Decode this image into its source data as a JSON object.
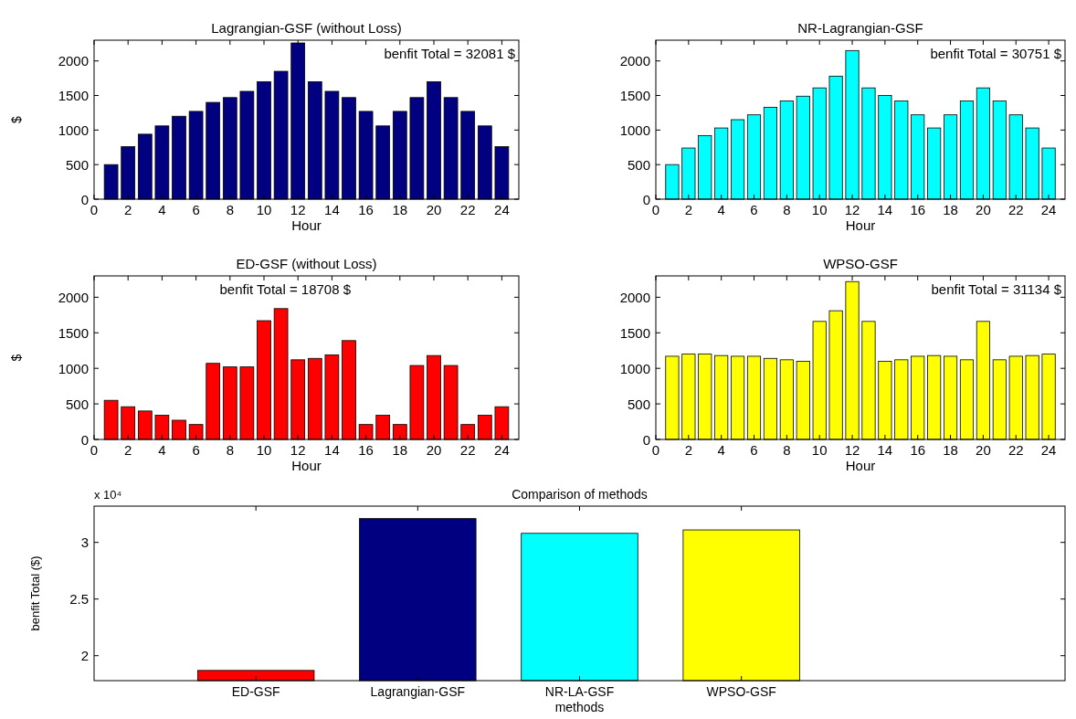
{
  "chart_data": [
    {
      "type": "bar",
      "title": "Lagrangian-GSF (without Loss)",
      "xlabel": "Hour",
      "ylabel": "$",
      "x": [
        1,
        2,
        3,
        4,
        5,
        6,
        7,
        8,
        9,
        10,
        11,
        12,
        13,
        14,
        15,
        16,
        17,
        18,
        19,
        20,
        21,
        22,
        23,
        24
      ],
      "values": [
        500,
        760,
        940,
        1060,
        1200,
        1270,
        1400,
        1470,
        1560,
        1700,
        1850,
        2260,
        1700,
        1560,
        1470,
        1270,
        1060,
        1270,
        1470,
        1700,
        1470,
        1270,
        1060,
        760
      ],
      "color": "#000080",
      "xlim": [
        0,
        25
      ],
      "xticks": [
        0,
        2,
        4,
        6,
        8,
        10,
        12,
        14,
        16,
        18,
        20,
        22,
        24
      ],
      "ylim": [
        0,
        2300
      ],
      "yticks": [
        0,
        500,
        1000,
        1500,
        2000
      ],
      "grid": false,
      "annotations": [
        "benfit Total = 32081 $"
      ]
    },
    {
      "type": "bar",
      "title": "NR-Lagrangian-GSF",
      "xlabel": "Hour",
      "x": [
        1,
        2,
        3,
        4,
        5,
        6,
        7,
        8,
        9,
        10,
        11,
        12,
        13,
        14,
        15,
        16,
        17,
        18,
        19,
        20,
        21,
        22,
        23,
        24
      ],
      "values": [
        500,
        740,
        920,
        1030,
        1150,
        1220,
        1330,
        1420,
        1490,
        1610,
        1780,
        2150,
        1610,
        1500,
        1420,
        1220,
        1030,
        1220,
        1420,
        1610,
        1420,
        1220,
        1030,
        740
      ],
      "color": "#00ffff",
      "xlim": [
        0,
        25
      ],
      "xticks": [
        0,
        2,
        4,
        6,
        8,
        10,
        12,
        14,
        16,
        18,
        20,
        22,
        24
      ],
      "ylim": [
        0,
        2300
      ],
      "yticks": [
        0,
        500,
        1000,
        1500,
        2000
      ],
      "grid": false,
      "annotations": [
        "benfit Total = 30751 $"
      ]
    },
    {
      "type": "bar",
      "title": "ED-GSF (without Loss)",
      "xlabel": "Hour",
      "ylabel": "$",
      "x": [
        1,
        2,
        3,
        4,
        5,
        6,
        7,
        8,
        9,
        10,
        11,
        12,
        13,
        14,
        15,
        16,
        17,
        18,
        19,
        20,
        21,
        22,
        23,
        24
      ],
      "values": [
        550,
        460,
        400,
        340,
        270,
        210,
        1070,
        1020,
        1020,
        1670,
        1840,
        1120,
        1140,
        1190,
        1390,
        210,
        340,
        210,
        1040,
        1180,
        1040,
        210,
        340,
        460
      ],
      "color": "#ff0000",
      "xlim": [
        0,
        25
      ],
      "xticks": [
        0,
        2,
        4,
        6,
        8,
        10,
        12,
        14,
        16,
        18,
        20,
        22,
        24
      ],
      "ylim": [
        0,
        2300
      ],
      "yticks": [
        0,
        500,
        1000,
        1500,
        2000
      ],
      "grid": false,
      "annotations": [
        "benfit Total = 18708 $"
      ]
    },
    {
      "type": "bar",
      "title": "WPSO-GSF",
      "xlabel": "Hour",
      "x": [
        1,
        2,
        3,
        4,
        5,
        6,
        7,
        8,
        9,
        10,
        11,
        12,
        13,
        14,
        15,
        16,
        17,
        18,
        19,
        20,
        21,
        22,
        23,
        24
      ],
      "values": [
        1170,
        1200,
        1200,
        1180,
        1170,
        1170,
        1140,
        1120,
        1100,
        1660,
        1810,
        2220,
        1660,
        1100,
        1120,
        1170,
        1180,
        1170,
        1120,
        1660,
        1120,
        1170,
        1180,
        1200
      ],
      "color": "#ffff00",
      "xlim": [
        0,
        25
      ],
      "xticks": [
        0,
        2,
        4,
        6,
        8,
        10,
        12,
        14,
        16,
        18,
        20,
        22,
        24
      ],
      "ylim": [
        0,
        2300
      ],
      "yticks": [
        0,
        500,
        1000,
        1500,
        2000
      ],
      "grid": false,
      "annotations": [
        "benfit Total = 31134 $"
      ]
    },
    {
      "type": "bar",
      "title": "Comparison of methods",
      "xlabel": "methods",
      "ylabel": "benfit  Total ($)",
      "categories": [
        "ED-GSF",
        "Lagrangian-GSF",
        "NR-LA-GSF",
        "WPSO-GSF"
      ],
      "values": [
        1.87,
        3.21,
        3.08,
        3.11
      ],
      "colors": [
        "#ff0000",
        "#000080",
        "#00ffff",
        "#ffff00"
      ],
      "ylim": [
        1.78,
        3.32
      ],
      "yticks": [
        2,
        2.5,
        3
      ],
      "grid": false,
      "annotations": [
        "x 10⁴"
      ]
    }
  ]
}
